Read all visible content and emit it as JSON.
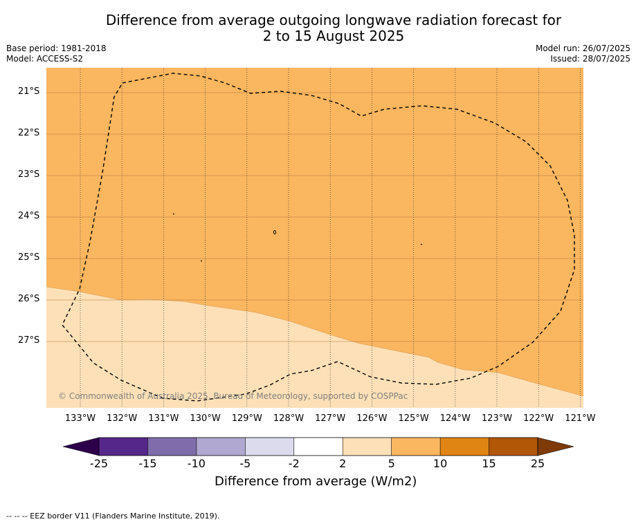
{
  "title_line1": "Difference from average outgoing longwave radiation forecast for",
  "title_line2": "2 to 15 August 2025",
  "meta_left": {
    "line1": "Base period: 1981-2018",
    "line2": "Model: ACCESS-S2"
  },
  "meta_right": {
    "line1": "Model run: 26/07/2025",
    "line2": "Issued: 28/07/2025"
  },
  "map": {
    "latitude_labels": [
      "21°S",
      "22°S",
      "23°S",
      "24°S",
      "25°S",
      "26°S",
      "27°S"
    ],
    "longitude_labels": [
      "133°W",
      "132°W",
      "131°W",
      "130°W",
      "129°W",
      "128°W",
      "127°W",
      "126°W",
      "125°W",
      "124°W",
      "123°W",
      "122°W",
      "121°W"
    ],
    "attribution": "© Commonwealth of Australia 2025, Bureau of Meteorology, supported by COSPPac",
    "fill_colors": {
      "upper": "#fbb660",
      "lower": "#fde0b7"
    }
  },
  "colorbar": {
    "ticks": [
      "-25",
      "-15",
      "-10",
      "-5",
      "-2",
      "2",
      "5",
      "10",
      "15",
      "25"
    ],
    "colors": [
      "#55278b",
      "#7f6dab",
      "#b0a8d0",
      "#dbdbed",
      "#ffffff",
      "#fde0b7",
      "#fbb660",
      "#e08414",
      "#b15706"
    ],
    "under_color": "#2d004a",
    "over_color": "#7f3b07",
    "label": "Difference from average (W/m2)"
  },
  "footer": "--  --  -- EEZ border V11 (Flanders Marine Institute, 2019)."
}
